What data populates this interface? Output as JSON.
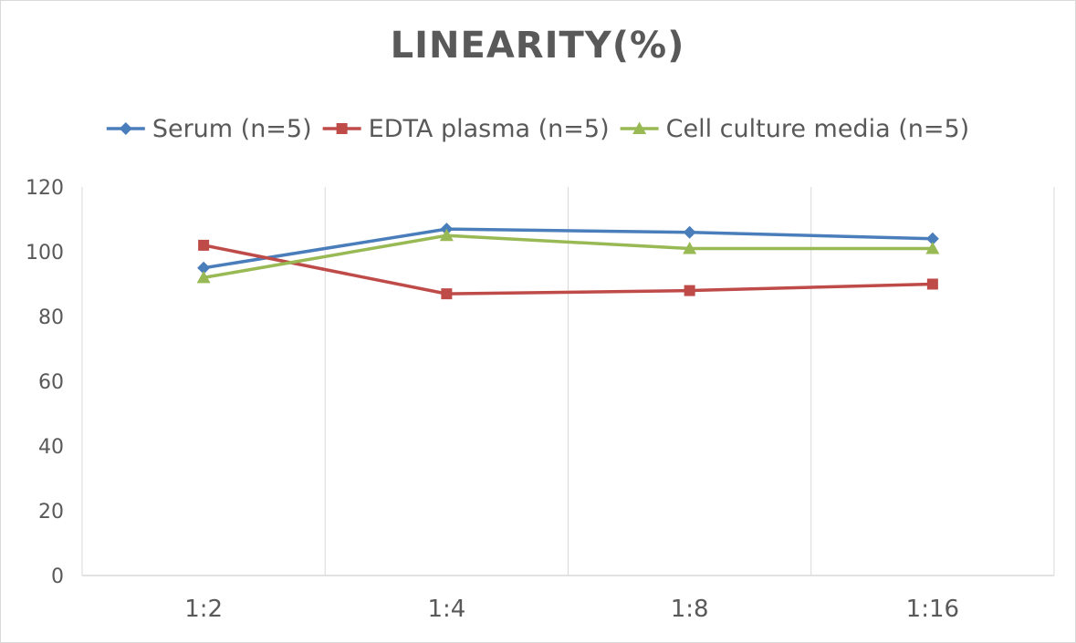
{
  "chart_data": {
    "type": "line",
    "title": "LINEARITY(%)",
    "categories": [
      "1:2",
      "1:4",
      "1:8",
      "1:16"
    ],
    "ylim": [
      0,
      120
    ],
    "yticks": [
      0,
      20,
      40,
      60,
      80,
      100,
      120
    ],
    "grid": "vertical",
    "legend_position": "top",
    "series": [
      {
        "name": "Serum (n=5)",
        "values": [
          95,
          107,
          106,
          104
        ],
        "color": "#4a7ebb",
        "marker": "diamond"
      },
      {
        "name": "EDTA plasma (n=5)",
        "values": [
          102,
          87,
          88,
          90
        ],
        "color": "#be4b48",
        "marker": "square"
      },
      {
        "name": "Cell culture media (n=5)",
        "values": [
          92,
          105,
          101,
          101
        ],
        "color": "#98b954",
        "marker": "triangle"
      }
    ]
  }
}
